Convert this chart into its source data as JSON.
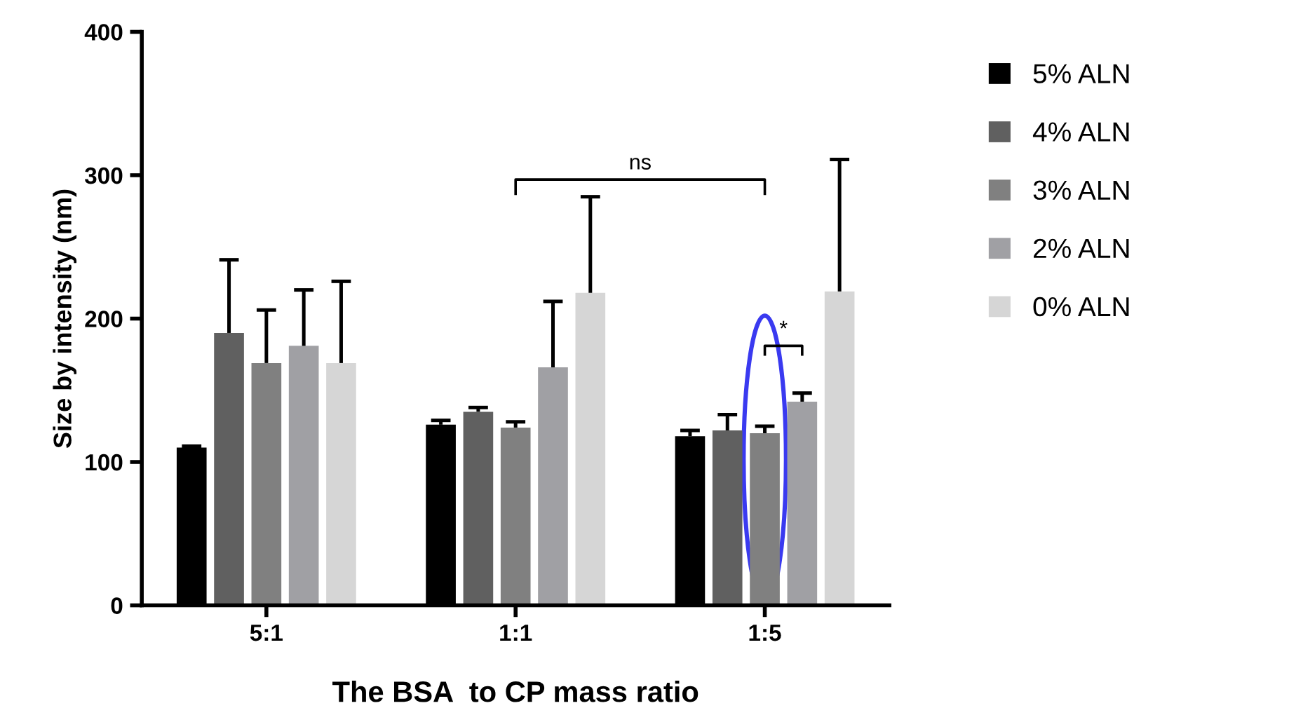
{
  "chart_data": {
    "type": "bar",
    "xlabel": "The BSA  to CP mass ratio",
    "ylabel": "Size by intensity (nm)",
    "categories": [
      "5:1",
      "1:1",
      "1:5"
    ],
    "series": [
      {
        "name": "5% ALN",
        "color": "#000000",
        "values": [
          110,
          126,
          118
        ],
        "errors": [
          [
            110,
            111
          ],
          [
            126,
            129
          ],
          [
            118,
            122
          ]
        ]
      },
      {
        "name": "4% ALN",
        "color": "#606060",
        "values": [
          190,
          135,
          122
        ],
        "errors": [
          [
            190,
            241
          ],
          [
            135,
            138
          ],
          [
            122,
            133
          ]
        ]
      },
      {
        "name": "3% ALN",
        "color": "#808080",
        "values": [
          169,
          124,
          120
        ],
        "errors": [
          [
            169,
            206
          ],
          [
            124,
            128
          ],
          [
            120,
            125
          ]
        ]
      },
      {
        "name": "2% ALN",
        "color": "#a0a0a4",
        "values": [
          181,
          166,
          142
        ],
        "errors": [
          [
            181,
            220
          ],
          [
            166,
            212
          ],
          [
            142,
            148
          ]
        ]
      },
      {
        "name": "0% ALN",
        "color": "#d6d6d6",
        "values": [
          169,
          218,
          219
        ],
        "errors": [
          [
            169,
            226
          ],
          [
            218,
            285
          ],
          [
            219,
            311
          ]
        ]
      }
    ],
    "ylim": [
      0,
      400
    ],
    "yticks": [
      0,
      100,
      200,
      300,
      400
    ],
    "grid": false,
    "legend": "right",
    "annotations": [
      "ns",
      "*"
    ]
  }
}
